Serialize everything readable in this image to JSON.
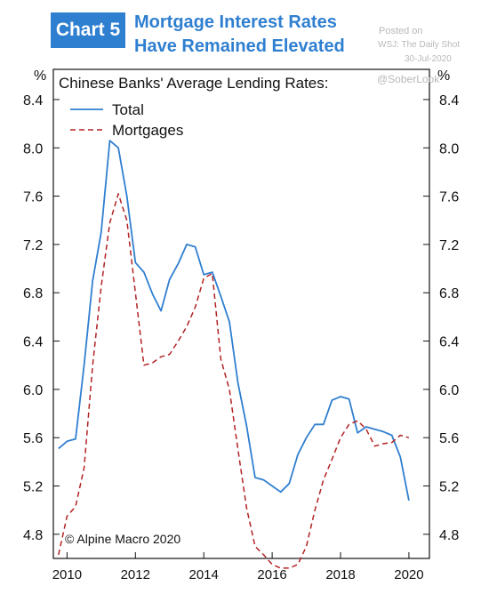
{
  "header": {
    "badge": "Chart 5",
    "title_line_1": "Mortgage Interest Rates",
    "title_line_2": "Have Remained Elevated",
    "accent_color": "#2f7fd0"
  },
  "source": {
    "posted": "Posted on",
    "outlet": "WSJ: The Daily Shot",
    "date": "30-Jul-2020",
    "handle": "@SoberLook"
  },
  "chart_data": {
    "type": "line",
    "title": "Chinese Banks' Average Lending Rates:",
    "ylabel_left": "%",
    "ylabel_right": "%",
    "xlim": [
      2009.6,
      2020.6
    ],
    "ylim": [
      4.6,
      8.65
    ],
    "x_ticks": [
      2010,
      2012,
      2014,
      2016,
      2018,
      2020
    ],
    "x_tick_labels": [
      "2010",
      "2012",
      "2014",
      "2016",
      "2018",
      "2020"
    ],
    "y_ticks": [
      4.8,
      5.2,
      5.6,
      6.0,
      6.4,
      6.8,
      7.2,
      7.6,
      8.0,
      8.4
    ],
    "y_tick_labels": [
      "4.8",
      "5.2",
      "5.6",
      "6.0",
      "6.4",
      "6.8",
      "7.2",
      "7.6",
      "8.0",
      "8.4"
    ],
    "grid": false,
    "legend_position": "top-left",
    "annotation": "© Alpine Macro 2020",
    "series": [
      {
        "name": "Total",
        "color": "#2f7fd0",
        "style": "solid",
        "x": [
          2009.75,
          2010.0,
          2010.25,
          2010.5,
          2010.75,
          2011.0,
          2011.25,
          2011.5,
          2011.75,
          2012.0,
          2012.25,
          2012.5,
          2012.75,
          2013.0,
          2013.25,
          2013.5,
          2013.75,
          2014.0,
          2014.25,
          2014.5,
          2014.75,
          2015.0,
          2015.25,
          2015.5,
          2015.75,
          2016.0,
          2016.25,
          2016.5,
          2016.75,
          2017.0,
          2017.25,
          2017.5,
          2017.75,
          2018.0,
          2018.25,
          2018.5,
          2018.75,
          2019.0,
          2019.25,
          2019.5,
          2019.75,
          2020.0
        ],
        "y": [
          5.51,
          5.57,
          5.59,
          6.2,
          6.9,
          7.3,
          8.06,
          8.0,
          7.6,
          7.05,
          6.97,
          6.79,
          6.65,
          6.91,
          7.04,
          7.2,
          7.18,
          6.95,
          6.97,
          6.77,
          6.56,
          6.05,
          5.7,
          5.27,
          5.25,
          5.2,
          5.15,
          5.22,
          5.46,
          5.6,
          5.71,
          5.71,
          5.91,
          5.94,
          5.92,
          5.64,
          5.69,
          5.67,
          5.65,
          5.62,
          5.44,
          5.08
        ]
      },
      {
        "name": "Mortgages",
        "color": "#b22222",
        "style": "dashed",
        "x": [
          2009.75,
          2010.0,
          2010.25,
          2010.5,
          2010.75,
          2011.0,
          2011.25,
          2011.5,
          2011.75,
          2012.0,
          2012.25,
          2012.5,
          2012.75,
          2013.0,
          2013.25,
          2013.5,
          2013.75,
          2014.0,
          2014.25,
          2014.5,
          2014.75,
          2015.0,
          2015.25,
          2015.5,
          2015.75,
          2016.0,
          2016.25,
          2016.5,
          2016.75,
          2017.0,
          2017.25,
          2017.5,
          2017.75,
          2018.0,
          2018.25,
          2018.5,
          2018.75,
          2019.0,
          2019.25,
          2019.5,
          2019.75,
          2020.0
        ],
        "y": [
          4.63,
          4.95,
          5.03,
          5.35,
          6.2,
          6.85,
          7.38,
          7.62,
          7.4,
          6.8,
          6.2,
          6.22,
          6.27,
          6.29,
          6.4,
          6.52,
          6.68,
          6.92,
          6.96,
          6.25,
          6.0,
          5.5,
          5.02,
          4.7,
          4.63,
          4.55,
          4.52,
          4.52,
          4.55,
          4.7,
          5.0,
          5.25,
          5.42,
          5.6,
          5.71,
          5.74,
          5.67,
          5.53,
          5.55,
          5.56,
          5.62,
          5.6
        ]
      }
    ]
  }
}
